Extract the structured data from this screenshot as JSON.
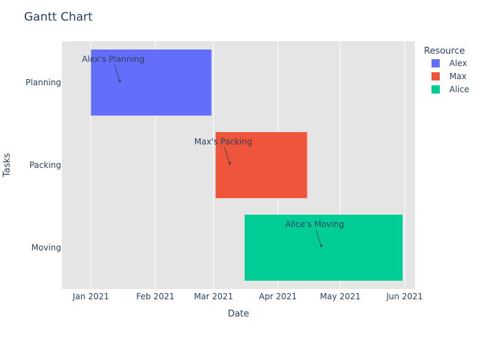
{
  "chart_data": {
    "type": "gantt",
    "title": "Gantt Chart",
    "xlabel": "Date",
    "ylabel": "Tasks",
    "x_ticks": [
      {
        "date": "2021-01-01",
        "label": "Jan 2021"
      },
      {
        "date": "2021-02-01",
        "label": "Feb 2021"
      },
      {
        "date": "2021-03-01",
        "label": "Mar 2021"
      },
      {
        "date": "2021-04-01",
        "label": "Apr 2021"
      },
      {
        "date": "2021-05-01",
        "label": "May 2021"
      },
      {
        "date": "2021-06-01",
        "label": "Jun 2021"
      }
    ],
    "xlim": [
      "2020-12-18",
      "2021-06-06"
    ],
    "categories": [
      "Planning",
      "Packing",
      "Moving"
    ],
    "legend": {
      "title": "Resource",
      "position": "top-right"
    },
    "grid": true,
    "plot_bg": "#e5e5e5",
    "tasks": [
      {
        "task": "Planning",
        "start": "2021-01-01",
        "finish": "2021-02-28",
        "resource": "Alex",
        "color": "#636efa"
      },
      {
        "task": "Packing",
        "start": "2021-03-02",
        "finish": "2021-04-15",
        "resource": "Max",
        "color": "#ef553b"
      },
      {
        "task": "Moving",
        "start": "2021-03-16",
        "finish": "2021-05-31",
        "resource": "Alice",
        "color": "#00cc96"
      }
    ],
    "annotations": [
      {
        "text": "Alex's Planning",
        "task": "Planning",
        "x": "2021-01-15"
      },
      {
        "text": "Max's Packing",
        "task": "Packing",
        "x": "2021-03-09"
      },
      {
        "text": "Alice's Moving",
        "task": "Moving",
        "x": "2021-04-22"
      }
    ]
  }
}
